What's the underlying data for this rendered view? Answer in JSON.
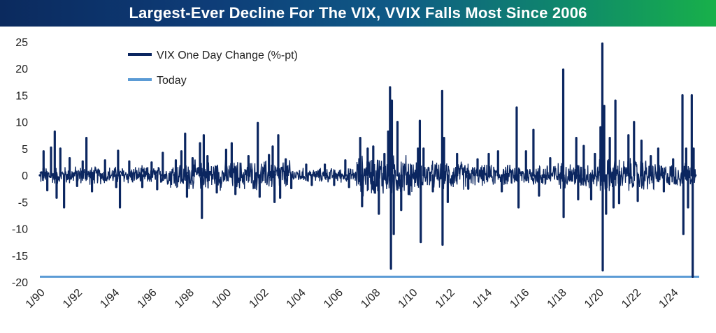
{
  "chart_data": {
    "type": "line",
    "title": "Largest-Ever Decline For The VIX, VVIX Falls Most Since 2006",
    "xlabel": "",
    "ylabel": "",
    "x_range": [
      1990.0,
      2025.4
    ],
    "ylim": [
      -20,
      25
    ],
    "y_ticks": [
      "25",
      "20",
      "15",
      "10",
      "5",
      "0",
      "-5",
      "-10",
      "-15",
      "-20"
    ],
    "x_ticks": [
      "1/90",
      "1/92",
      "1/94",
      "1/96",
      "1/98",
      "1/00",
      "1/02",
      "1/04",
      "1/06",
      "1/08",
      "1/10",
      "1/12",
      "1/14",
      "1/16",
      "1/18",
      "1/20",
      "1/22",
      "1/24"
    ],
    "grid": false,
    "legend_position": "top-left",
    "series": [
      {
        "name": "VIX One Day Change (%-pt)",
        "color": "#0b2660",
        "points": [
          [
            1990.0,
            0
          ],
          [
            1990.2,
            4.5
          ],
          [
            1990.4,
            -2.8
          ],
          [
            1990.6,
            5.2
          ],
          [
            1990.8,
            8.2
          ],
          [
            1990.9,
            -4.2
          ],
          [
            1991.1,
            5.0
          ],
          [
            1991.3,
            -6.0
          ],
          [
            1991.6,
            3.2
          ],
          [
            1992.0,
            -2.0
          ],
          [
            1992.3,
            2.6
          ],
          [
            1992.5,
            7.0
          ],
          [
            1992.8,
            -3.0
          ],
          [
            1993.5,
            2.8
          ],
          [
            1994.1,
            -2.2
          ],
          [
            1994.2,
            4.6
          ],
          [
            1994.3,
            -6.0
          ],
          [
            1994.8,
            2.6
          ],
          [
            1995.5,
            -2.2
          ],
          [
            1996.0,
            2.4
          ],
          [
            1996.3,
            -2.6
          ],
          [
            1996.6,
            4.2
          ],
          [
            1997.3,
            2.8
          ],
          [
            1997.6,
            4.5
          ],
          [
            1997.8,
            7.8
          ],
          [
            1997.9,
            -4.0
          ],
          [
            1998.2,
            3.2
          ],
          [
            1998.6,
            6.0
          ],
          [
            1998.7,
            -8.0
          ],
          [
            1998.8,
            7.5
          ],
          [
            1999.0,
            3.6
          ],
          [
            1999.5,
            -3.2
          ],
          [
            2000.0,
            4.8
          ],
          [
            2000.3,
            6.0
          ],
          [
            2000.5,
            -3.5
          ],
          [
            2001.2,
            3.6
          ],
          [
            2001.7,
            9.8
          ],
          [
            2001.8,
            -4.0
          ],
          [
            2002.3,
            3.8
          ],
          [
            2002.5,
            5.4
          ],
          [
            2002.6,
            -5.0
          ],
          [
            2002.8,
            7.5
          ],
          [
            2002.9,
            -4.2
          ],
          [
            2003.2,
            3.0
          ],
          [
            2003.5,
            -2.4
          ],
          [
            2004.3,
            2.0
          ],
          [
            2004.6,
            -1.8
          ],
          [
            2005.3,
            2.0
          ],
          [
            2005.8,
            -1.8
          ],
          [
            2006.4,
            2.8
          ],
          [
            2006.6,
            -2.2
          ],
          [
            2007.2,
            7.0
          ],
          [
            2007.3,
            -5.8
          ],
          [
            2007.6,
            5.0
          ],
          [
            2007.9,
            5.4
          ],
          [
            2008.2,
            -7.2
          ],
          [
            2008.5,
            4.0
          ],
          [
            2008.7,
            8.2
          ],
          [
            2008.8,
            16.5
          ],
          [
            2008.85,
            -17.5
          ],
          [
            2008.9,
            14.0
          ],
          [
            2009.0,
            -11.0
          ],
          [
            2009.2,
            10.0
          ],
          [
            2009.4,
            -6.5
          ],
          [
            2009.8,
            -3.5
          ],
          [
            2010.3,
            5.0
          ],
          [
            2010.4,
            10.2
          ],
          [
            2010.45,
            -12.5
          ],
          [
            2010.6,
            5.0
          ],
          [
            2011.1,
            -3.0
          ],
          [
            2011.6,
            15.8
          ],
          [
            2011.62,
            -13.0
          ],
          [
            2011.7,
            7.0
          ],
          [
            2011.9,
            -5.0
          ],
          [
            2012.4,
            4.0
          ],
          [
            2013.0,
            -2.5
          ],
          [
            2013.5,
            3.0
          ],
          [
            2014.1,
            4.0
          ],
          [
            2014.6,
            4.5
          ],
          [
            2014.8,
            -3.0
          ],
          [
            2015.6,
            12.7
          ],
          [
            2015.7,
            -6.0
          ],
          [
            2016.1,
            4.5
          ],
          [
            2016.5,
            8.5
          ],
          [
            2016.8,
            -3.8
          ],
          [
            2017.4,
            3.2
          ],
          [
            2018.1,
            19.8
          ],
          [
            2018.12,
            -7.8
          ],
          [
            2018.8,
            7.0
          ],
          [
            2018.9,
            -4.5
          ],
          [
            2019.2,
            5.5
          ],
          [
            2019.6,
            -4.5
          ],
          [
            2019.8,
            4.0
          ],
          [
            2020.1,
            9.0
          ],
          [
            2020.2,
            24.7
          ],
          [
            2020.22,
            -17.8
          ],
          [
            2020.3,
            13.0
          ],
          [
            2020.4,
            -7.2
          ],
          [
            2020.6,
            7.0
          ],
          [
            2020.8,
            -6.0
          ],
          [
            2020.9,
            14.0
          ],
          [
            2021.1,
            -5.2
          ],
          [
            2021.6,
            7.5
          ],
          [
            2021.9,
            10.0
          ],
          [
            2022.1,
            -4.8
          ],
          [
            2022.3,
            6.5
          ],
          [
            2022.8,
            3.6
          ],
          [
            2023.2,
            5.0
          ],
          [
            2023.5,
            -3.0
          ],
          [
            2024.0,
            3.0
          ],
          [
            2024.5,
            15.0
          ],
          [
            2024.55,
            -11.0
          ],
          [
            2024.7,
            5.0
          ],
          [
            2024.8,
            -6.0
          ],
          [
            2025.0,
            15.0
          ],
          [
            2025.05,
            -19.0
          ],
          [
            2025.1,
            5.0
          ],
          [
            2025.2,
            0
          ]
        ]
      },
      {
        "name": "Today",
        "color": "#5b9bd5",
        "value": -19
      }
    ]
  }
}
